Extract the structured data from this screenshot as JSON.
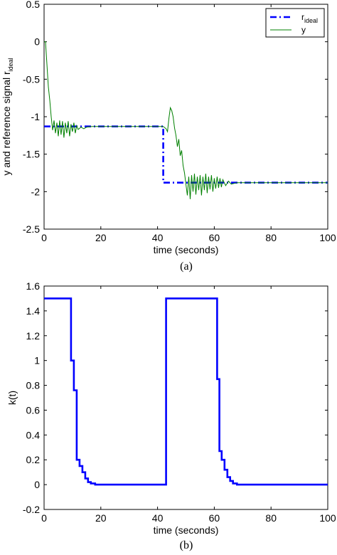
{
  "chart_data": [
    {
      "type": "line",
      "caption": "(a)",
      "xlabel": "time (seconds)",
      "ylabel": "y and reference signal r",
      "ylabel_sub": "ideal",
      "xlim": [
        0,
        100
      ],
      "ylim": [
        -2.5,
        0.5
      ],
      "xticks": [
        "0",
        "20",
        "40",
        "60",
        "80",
        "100"
      ],
      "yticks": [
        "-2.5",
        "-2",
        "-1.5",
        "-1",
        "-0.5",
        "0",
        "0.5"
      ],
      "legend_position": "top-right",
      "series": [
        {
          "name": "r",
          "name_sub": "ideal",
          "style": "dash-dot",
          "color": "#0000ff",
          "points": [
            [
              0,
              -1.13
            ],
            [
              42,
              -1.13
            ],
            [
              42,
              -1.88
            ],
            [
              100,
              -1.88
            ]
          ]
        },
        {
          "name": "y",
          "style": "solid",
          "color": "#008000",
          "points": [
            [
              0,
              0.0
            ],
            [
              0.5,
              0.0
            ],
            [
              1,
              -0.3
            ],
            [
              1.5,
              -0.6
            ],
            [
              2,
              -0.78
            ],
            [
              2.5,
              -1.0
            ],
            [
              3,
              -1.18
            ],
            [
              3.5,
              -1.05
            ],
            [
              4,
              -1.22
            ],
            [
              4.5,
              -1.08
            ],
            [
              5,
              -1.26
            ],
            [
              5.5,
              -1.05
            ],
            [
              6,
              -1.24
            ],
            [
              6.5,
              -1.06
            ],
            [
              7,
              -1.28
            ],
            [
              7.5,
              -1.08
            ],
            [
              8,
              -1.22
            ],
            [
              8.5,
              -1.06
            ],
            [
              9,
              -1.26
            ],
            [
              9.5,
              -1.1
            ],
            [
              10,
              -1.2
            ],
            [
              10.5,
              -1.08
            ],
            [
              11,
              -1.22
            ],
            [
              11.5,
              -1.12
            ],
            [
              12,
              -1.17
            ],
            [
              13,
              -1.14
            ],
            [
              14,
              -1.16
            ],
            [
              15,
              -1.14
            ],
            [
              17,
              -1.13
            ],
            [
              20,
              -1.13
            ],
            [
              30,
              -1.13
            ],
            [
              42,
              -1.13
            ],
            [
              43,
              -1.16
            ],
            [
              43.5,
              -1.2
            ],
            [
              44,
              -1.02
            ],
            [
              44.5,
              -0.88
            ],
            [
              45,
              -0.92
            ],
            [
              45.5,
              -1.0
            ],
            [
              46,
              -1.15
            ],
            [
              46.5,
              -1.25
            ],
            [
              47,
              -1.4
            ],
            [
              47.5,
              -1.3
            ],
            [
              48,
              -1.52
            ],
            [
              48.5,
              -1.45
            ],
            [
              49,
              -1.65
            ],
            [
              49.5,
              -1.75
            ],
            [
              50,
              -1.9
            ],
            [
              50.5,
              -2.05
            ],
            [
              51,
              -1.8
            ],
            [
              51.5,
              -2.1
            ],
            [
              52,
              -1.78
            ],
            [
              52.5,
              -2.0
            ],
            [
              53,
              -1.76
            ],
            [
              53.5,
              -2.04
            ],
            [
              54,
              -1.8
            ],
            [
              54.5,
              -1.98
            ],
            [
              55,
              -1.78
            ],
            [
              55.5,
              -2.05
            ],
            [
              56,
              -1.8
            ],
            [
              56.5,
              -1.98
            ],
            [
              57,
              -1.76
            ],
            [
              57.5,
              -2.02
            ],
            [
              58,
              -1.8
            ],
            [
              58.5,
              -1.97
            ],
            [
              59,
              -1.78
            ],
            [
              59.5,
              -2.0
            ],
            [
              60,
              -1.82
            ],
            [
              60.5,
              -1.96
            ],
            [
              61,
              -1.8
            ],
            [
              61.5,
              -1.95
            ],
            [
              62,
              -1.82
            ],
            [
              62.5,
              -1.94
            ],
            [
              63,
              -1.84
            ],
            [
              64,
              -1.92
            ],
            [
              65,
              -1.86
            ],
            [
              66,
              -1.9
            ],
            [
              68,
              -1.88
            ],
            [
              70,
              -1.88
            ],
            [
              100,
              -1.88
            ]
          ]
        }
      ]
    },
    {
      "type": "line",
      "caption": "(b)",
      "xlabel": "time (seconds)",
      "ylabel": "k(t)",
      "xlim": [
        0,
        100
      ],
      "ylim": [
        -0.2,
        1.6
      ],
      "xticks": [
        "0",
        "20",
        "40",
        "60",
        "80",
        "100"
      ],
      "yticks": [
        "-0.2",
        "0",
        "0.2",
        "0.4",
        "0.6",
        "0.8",
        "1",
        "1.2",
        "1.4",
        "1.6"
      ],
      "series": [
        {
          "style": "solid",
          "color": "#0000ff",
          "points": [
            [
              0,
              1.5
            ],
            [
              9.5,
              1.5
            ],
            [
              9.5,
              1.0
            ],
            [
              10.5,
              1.0
            ],
            [
              10.5,
              0.76
            ],
            [
              11.5,
              0.76
            ],
            [
              11.5,
              0.2
            ],
            [
              12.5,
              0.2
            ],
            [
              12.5,
              0.15
            ],
            [
              13.5,
              0.15
            ],
            [
              13.5,
              0.1
            ],
            [
              14.5,
              0.1
            ],
            [
              14.5,
              0.05
            ],
            [
              15.5,
              0.05
            ],
            [
              15.5,
              0.02
            ],
            [
              16.5,
              0.02
            ],
            [
              16.5,
              0.01
            ],
            [
              18,
              0.01
            ],
            [
              18,
              0.0
            ],
            [
              43,
              0.0
            ],
            [
              43,
              1.5
            ],
            [
              61,
              1.5
            ],
            [
              61,
              0.85
            ],
            [
              61.8,
              0.85
            ],
            [
              61.8,
              0.27
            ],
            [
              62.6,
              0.27
            ],
            [
              62.6,
              0.2
            ],
            [
              63.6,
              0.2
            ],
            [
              63.6,
              0.12
            ],
            [
              64.6,
              0.12
            ],
            [
              64.6,
              0.06
            ],
            [
              65.6,
              0.06
            ],
            [
              65.6,
              0.03
            ],
            [
              66.6,
              0.03
            ],
            [
              66.6,
              0.01
            ],
            [
              68,
              0.01
            ],
            [
              68,
              0.0
            ],
            [
              100,
              0.0
            ]
          ]
        }
      ]
    }
  ]
}
